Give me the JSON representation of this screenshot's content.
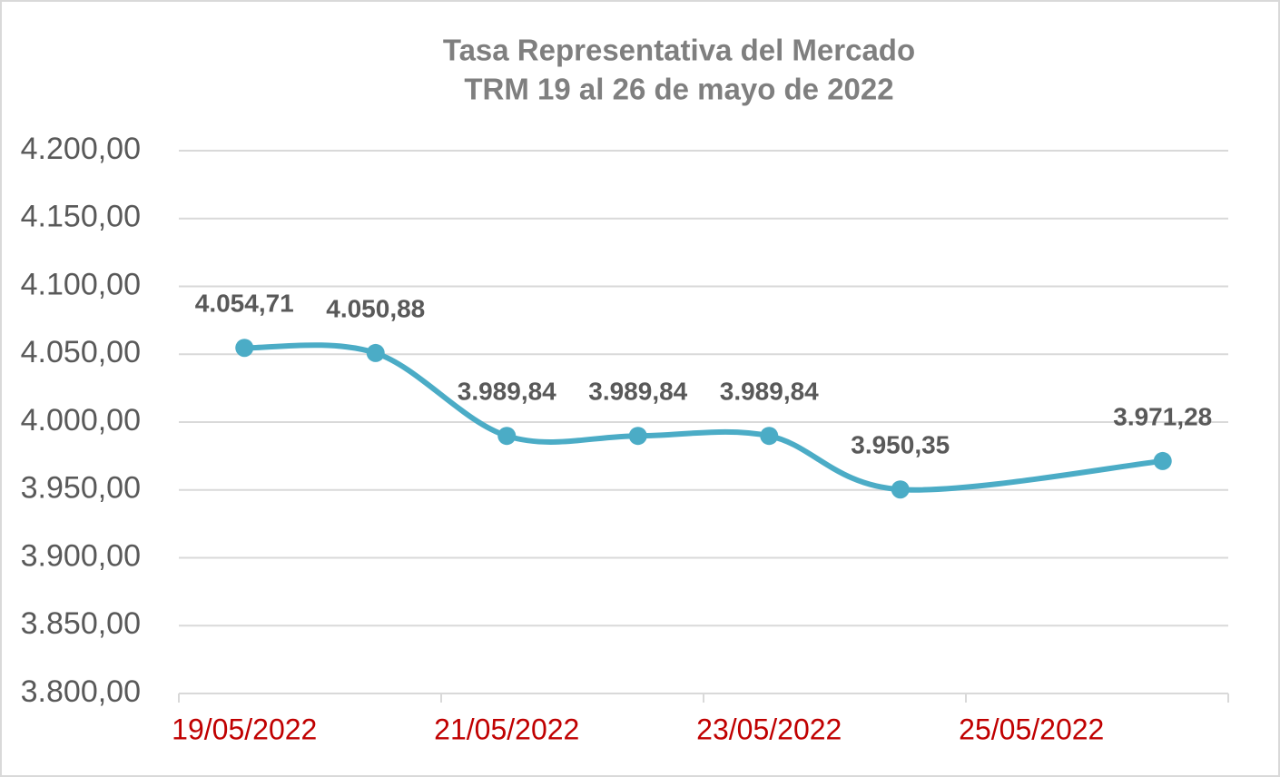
{
  "chart_data": {
    "type": "line",
    "title": [
      "Tasa Representativa del Mercado",
      "TRM 19 al 26 de mayo de 2022"
    ],
    "x": [
      "19/05/2022",
      "20/05/2022",
      "21/05/2022",
      "22/05/2022",
      "23/05/2022",
      "24/05/2022",
      "26/05/2022"
    ],
    "series": [
      {
        "name": "TRM",
        "color": "#4bacc6",
        "values": [
          4054.71,
          4050.88,
          3989.84,
          3989.84,
          3989.84,
          3950.35,
          3971.28
        ],
        "value_labels": [
          "4.054,71",
          "4.050,88",
          "3.989,84",
          "3.989,84",
          "3.989,84",
          "3.950,35",
          "3.971,28"
        ]
      }
    ],
    "xlim": [
      "19/05/2022",
      "27/05/2022"
    ],
    "xticks": [
      "19/05/2022",
      "21/05/2022",
      "23/05/2022",
      "25/05/2022"
    ],
    "ylim": [
      3800,
      4200
    ],
    "yticks": [
      {
        "value": 3800,
        "label": "3.800,00"
      },
      {
        "value": 3850,
        "label": "3.850,00"
      },
      {
        "value": 3900,
        "label": "3.900,00"
      },
      {
        "value": 3950,
        "label": "3.950,00"
      },
      {
        "value": 4000,
        "label": "4.000,00"
      },
      {
        "value": 4050,
        "label": "4.050,00"
      },
      {
        "value": 4100,
        "label": "4.100,00"
      },
      {
        "value": 4150,
        "label": "4.150,00"
      },
      {
        "value": 4200,
        "label": "4.200,00"
      }
    ],
    "grid": true
  }
}
